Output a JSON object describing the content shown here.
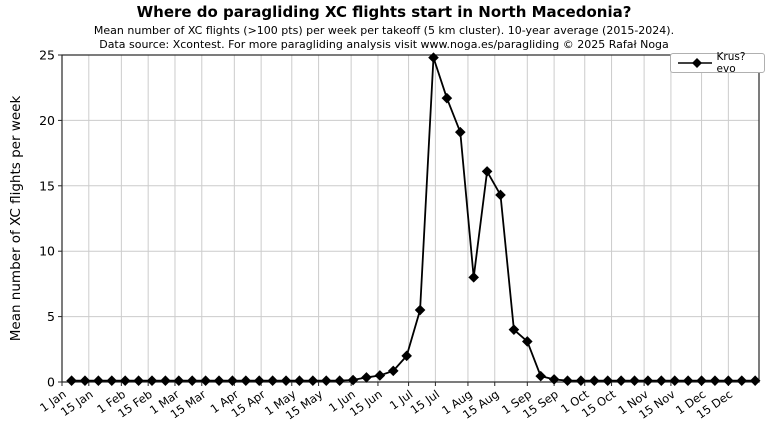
{
  "header": {
    "title": "Where do paragliding XC flights start in North Macedonia?",
    "subtitle": "Mean number of XC flights (>100 pts) per week per takeoff (5 km cluster). 10-year average (2015-2024).",
    "credit": "Data source: Xcontest. For more paragliding analysis visit www.noga.es/paragliding © 2025 Rafał Noga"
  },
  "chart_data": {
    "type": "line",
    "title": "Where do paragliding XC flights start in North Macedonia?",
    "subtitle": "Mean number of XC flights (>100 pts) per week per takeoff (5 km cluster). 10-year average (2015-2024).",
    "credit": "Data source: Xcontest. For more paragliding analysis visit www.noga.es/paragliding © 2025 Rafał Noga",
    "xlabel": "",
    "ylabel": "Mean number of XC flights per week",
    "ylim": [
      0,
      25
    ],
    "yticks": [
      0,
      5,
      10,
      15,
      20,
      25
    ],
    "x_unit": "day_of_year",
    "xlim_days": [
      1,
      365
    ],
    "grid": true,
    "legend_position": "top-right",
    "xticks": [
      {
        "day": 1,
        "label": "1 Jan"
      },
      {
        "day": 15,
        "label": "15 Jan"
      },
      {
        "day": 32,
        "label": "1 Feb"
      },
      {
        "day": 46,
        "label": "15 Feb"
      },
      {
        "day": 60,
        "label": "1 Mar"
      },
      {
        "day": 74,
        "label": "15 Mar"
      },
      {
        "day": 91,
        "label": "1 Apr"
      },
      {
        "day": 105,
        "label": "15 Apr"
      },
      {
        "day": 121,
        "label": "1 May"
      },
      {
        "day": 135,
        "label": "15 May"
      },
      {
        "day": 152,
        "label": "1 Jun"
      },
      {
        "day": 166,
        "label": "15 Jun"
      },
      {
        "day": 182,
        "label": "1 Jul"
      },
      {
        "day": 196,
        "label": "15 Jul"
      },
      {
        "day": 213,
        "label": "1 Aug"
      },
      {
        "day": 227,
        "label": "15 Aug"
      },
      {
        "day": 244,
        "label": "1 Sep"
      },
      {
        "day": 258,
        "label": "15 Sep"
      },
      {
        "day": 274,
        "label": "1 Oct"
      },
      {
        "day": 288,
        "label": "15 Oct"
      },
      {
        "day": 305,
        "label": "1 Nov"
      },
      {
        "day": 319,
        "label": "15 Nov"
      },
      {
        "day": 335,
        "label": "1 Dec"
      },
      {
        "day": 349,
        "label": "15 Dec"
      }
    ],
    "series": [
      {
        "name": "Krus?evo",
        "color": "#000000",
        "marker": "diamond",
        "first_day": 6,
        "day_step": 7,
        "values": [
          0.1,
          0.1,
          0.1,
          0.1,
          0.1,
          0.1,
          0.1,
          0.1,
          0.1,
          0.1,
          0.1,
          0.1,
          0.1,
          0.1,
          0.1,
          0.1,
          0.1,
          0.1,
          0.1,
          0.1,
          0.1,
          0.15,
          0.35,
          0.5,
          0.85,
          2.0,
          5.5,
          24.8,
          21.7,
          19.1,
          8.0,
          16.1,
          14.3,
          4.0,
          3.1,
          0.45,
          0.2,
          0.1,
          0.1,
          0.1,
          0.1,
          0.1,
          0.1,
          0.1,
          0.1,
          0.1,
          0.1,
          0.1,
          0.1,
          0.1,
          0.1,
          0.1
        ]
      }
    ],
    "colors": {
      "line": "#000000",
      "grid": "#cccccc",
      "axis": "#262626",
      "background": "#ffffff"
    }
  }
}
